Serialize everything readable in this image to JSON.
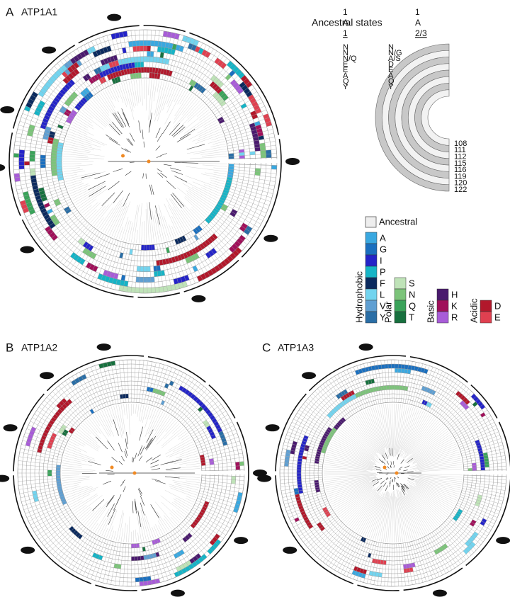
{
  "panels": [
    {
      "letter": "A",
      "gene": "ATP1A1"
    },
    {
      "letter": "B",
      "gene": "ATP1A2"
    },
    {
      "letter": "C",
      "gene": "ATP1A3"
    }
  ],
  "ancestral": {
    "title": "Ancestral states",
    "columns": [
      [
        "1",
        "A",
        "1"
      ],
      [
        "1",
        "A",
        "2/3"
      ]
    ],
    "rows": [
      [
        "N",
        "N"
      ],
      [
        "N",
        "N/G"
      ],
      [
        "N/Q",
        "A/S"
      ],
      [
        "E",
        "D"
      ],
      [
        "E",
        "E"
      ],
      [
        "A",
        "A"
      ],
      [
        "Q",
        "Q"
      ],
      [
        "Y",
        "Y"
      ]
    ],
    "sites": [
      "108",
      "111",
      "112",
      "115",
      "116",
      "119",
      "120",
      "122"
    ]
  },
  "legend": {
    "ancestral": "Ancestral",
    "groups": [
      {
        "name": "Hydrophobic",
        "items": [
          {
            "label": "A",
            "color": "#3aa8e0"
          },
          {
            "label": "G",
            "color": "#1a6fbf"
          },
          {
            "label": "I",
            "color": "#2424c8"
          },
          {
            "label": "P",
            "color": "#16b4c6"
          },
          {
            "label": "F",
            "color": "#0b2a5e"
          },
          {
            "label": "L",
            "color": "#72d4ef"
          },
          {
            "label": "V",
            "color": "#5f9fd2"
          },
          {
            "label": "Y",
            "color": "#2a6ea6"
          }
        ]
      },
      {
        "name": "Polar",
        "items": [
          {
            "label": "S",
            "color": "#bfe3b8"
          },
          {
            "label": "N",
            "color": "#7cc47a"
          },
          {
            "label": "Q",
            "color": "#3aa35a"
          },
          {
            "label": "T",
            "color": "#17703e"
          }
        ]
      },
      {
        "name": "Basic",
        "items": [
          {
            "label": "H",
            "color": "#4a1a6e"
          },
          {
            "label": "K",
            "color": "#a0105a"
          },
          {
            "label": "R",
            "color": "#a85cd8"
          }
        ]
      },
      {
        "name": "Acidic",
        "items": [
          {
            "label": "D",
            "color": "#b2182b"
          },
          {
            "label": "E",
            "color": "#e04050"
          }
        ]
      }
    ]
  }
}
